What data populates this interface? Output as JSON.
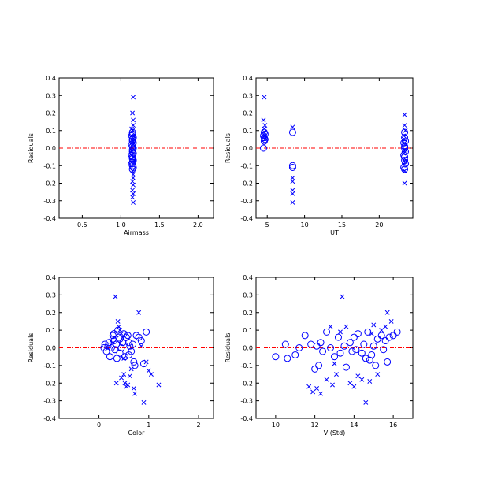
{
  "colors": {
    "marker": "#0000ff",
    "zero_line": "#ff0000",
    "axes": "#000000"
  },
  "chart_data": [
    {
      "type": "scatter",
      "xlabel": "Airmass",
      "ylabel": "Residuals",
      "xlim": [
        0.2,
        2.2
      ],
      "ylim": [
        -0.4,
        0.4
      ],
      "xticks": [
        "0.5",
        "1.0",
        "1.5",
        "2.0"
      ],
      "xtick_values": [
        0.5,
        1.0,
        1.5,
        2.0
      ],
      "yticks": [
        "-0.4",
        "-0.3",
        "-0.2",
        "-0.1",
        "0.0",
        "0.1",
        "0.2",
        "0.3",
        "0.4"
      ],
      "ytick_values": [
        -0.4,
        -0.3,
        -0.2,
        -0.1,
        0.0,
        0.1,
        0.2,
        0.3,
        0.4
      ],
      "zero_line": 0.0,
      "series": [
        {
          "marker": "circle",
          "points": [
            [
              1.15,
              0.09
            ],
            [
              1.15,
              0.08
            ],
            [
              1.14,
              0.07
            ],
            [
              1.16,
              0.06
            ],
            [
              1.15,
              0.05
            ],
            [
              1.15,
              0.04
            ],
            [
              1.16,
              0.03
            ],
            [
              1.14,
              0.02
            ],
            [
              1.15,
              0.01
            ],
            [
              1.16,
              0.0
            ],
            [
              1.15,
              -0.01
            ],
            [
              1.15,
              -0.02
            ],
            [
              1.16,
              -0.03
            ],
            [
              1.14,
              -0.04
            ],
            [
              1.15,
              -0.05
            ],
            [
              1.15,
              -0.06
            ],
            [
              1.16,
              -0.07
            ],
            [
              1.15,
              -0.08
            ],
            [
              1.14,
              -0.09
            ],
            [
              1.15,
              -0.1
            ],
            [
              1.16,
              -0.11
            ],
            [
              1.15,
              -0.12
            ]
          ]
        },
        {
          "marker": "x",
          "points": [
            [
              1.16,
              0.29
            ],
            [
              1.15,
              0.2
            ],
            [
              1.16,
              0.16
            ],
            [
              1.16,
              0.13
            ],
            [
              1.14,
              0.11
            ],
            [
              1.15,
              0.1
            ],
            [
              1.17,
              0.07
            ],
            [
              1.16,
              0.04
            ],
            [
              1.16,
              0.02
            ],
            [
              1.14,
              -0.02
            ],
            [
              1.16,
              -0.05
            ],
            [
              1.17,
              -0.07
            ],
            [
              1.15,
              -0.13
            ],
            [
              1.16,
              -0.15
            ],
            [
              1.16,
              -0.17
            ],
            [
              1.15,
              -0.19
            ],
            [
              1.16,
              -0.21
            ],
            [
              1.15,
              -0.24
            ],
            [
              1.16,
              -0.26
            ],
            [
              1.15,
              -0.28
            ],
            [
              1.16,
              -0.31
            ]
          ]
        }
      ]
    },
    {
      "type": "scatter",
      "xlabel": "UT",
      "ylabel": "Residuals",
      "xlim": [
        3.5,
        24.5
      ],
      "ylim": [
        -0.4,
        0.4
      ],
      "xticks": [
        "5",
        "10",
        "15",
        "20"
      ],
      "xtick_values": [
        5,
        10,
        15,
        20
      ],
      "yticks": [
        "-0.4",
        "-0.3",
        "-0.2",
        "-0.1",
        "0.0",
        "0.1",
        "0.2",
        "0.3",
        "0.4"
      ],
      "ytick_values": [
        -0.4,
        -0.3,
        -0.2,
        -0.1,
        0.0,
        0.1,
        0.2,
        0.3,
        0.4
      ],
      "zero_line": 0.0,
      "series": [
        {
          "marker": "circle",
          "points": [
            [
              4.6,
              0.09
            ],
            [
              4.7,
              0.08
            ],
            [
              4.5,
              0.07
            ],
            [
              4.6,
              0.06
            ],
            [
              4.7,
              0.05
            ],
            [
              4.6,
              0.04
            ],
            [
              4.5,
              0.0
            ],
            [
              8.4,
              0.09
            ],
            [
              8.4,
              -0.1
            ],
            [
              8.4,
              -0.11
            ],
            [
              23.4,
              0.09
            ],
            [
              23.4,
              0.06
            ],
            [
              23.5,
              0.04
            ],
            [
              23.3,
              0.03
            ],
            [
              23.4,
              0.01
            ],
            [
              23.4,
              0.0
            ],
            [
              23.5,
              -0.02
            ],
            [
              23.3,
              -0.04
            ],
            [
              23.4,
              -0.05
            ],
            [
              23.4,
              -0.07
            ],
            [
              23.5,
              -0.09
            ],
            [
              23.3,
              -0.11
            ],
            [
              23.4,
              -0.12
            ]
          ]
        },
        {
          "marker": "x",
          "points": [
            [
              4.6,
              0.29
            ],
            [
              4.5,
              0.16
            ],
            [
              4.7,
              0.13
            ],
            [
              4.6,
              0.11
            ],
            [
              4.5,
              0.08
            ],
            [
              4.7,
              0.05
            ],
            [
              8.4,
              0.12
            ],
            [
              8.4,
              -0.17
            ],
            [
              8.4,
              -0.19
            ],
            [
              8.4,
              -0.24
            ],
            [
              8.4,
              -0.26
            ],
            [
              8.4,
              -0.31
            ],
            [
              23.4,
              0.19
            ],
            [
              23.4,
              0.13
            ],
            [
              23.5,
              0.1
            ],
            [
              23.3,
              0.07
            ],
            [
              23.4,
              0.03
            ],
            [
              23.5,
              -0.01
            ],
            [
              23.3,
              -0.03
            ],
            [
              23.4,
              -0.06
            ],
            [
              23.5,
              -0.08
            ],
            [
              23.4,
              -0.13
            ],
            [
              23.4,
              -0.2
            ]
          ]
        }
      ]
    },
    {
      "type": "scatter",
      "xlabel": "Color",
      "ylabel": "Residuals",
      "xlim": [
        -0.8,
        2.3
      ],
      "ylim": [
        -0.4,
        0.4
      ],
      "xticks": [
        "0",
        "1",
        "2"
      ],
      "xtick_values": [
        0,
        1,
        2
      ],
      "yticks": [
        "-0.4",
        "-0.3",
        "-0.2",
        "-0.1",
        "0.0",
        "0.1",
        "0.2",
        "0.3",
        "0.4"
      ],
      "ytick_values": [
        -0.4,
        -0.3,
        -0.2,
        -0.1,
        0.0,
        0.1,
        0.2,
        0.3,
        0.4
      ],
      "zero_line": 0.0,
      "series": [
        {
          "marker": "circle",
          "points": [
            [
              0.1,
              0.0
            ],
            [
              0.12,
              0.02
            ],
            [
              0.15,
              -0.02
            ],
            [
              0.18,
              0.01
            ],
            [
              0.2,
              0.03
            ],
            [
              0.25,
              0.0
            ],
            [
              0.28,
              0.05
            ],
            [
              0.3,
              0.08
            ],
            [
              0.32,
              -0.01
            ],
            [
              0.35,
              0.02
            ],
            [
              0.38,
              0.1
            ],
            [
              0.4,
              0.06
            ],
            [
              0.42,
              -0.03
            ],
            [
              0.45,
              0.0
            ],
            [
              0.48,
              0.03
            ],
            [
              0.5,
              0.08
            ],
            [
              0.52,
              -0.05
            ],
            [
              0.55,
              0.06
            ],
            [
              0.58,
              0.07
            ],
            [
              0.6,
              -0.04
            ],
            [
              0.62,
              0.01
            ],
            [
              0.65,
              -0.02
            ],
            [
              0.68,
              0.02
            ],
            [
              0.7,
              -0.08
            ],
            [
              0.72,
              -0.1
            ],
            [
              0.75,
              0.07
            ],
            [
              0.8,
              0.06
            ],
            [
              0.85,
              0.04
            ],
            [
              0.9,
              -0.09
            ],
            [
              0.95,
              0.09
            ],
            [
              0.3,
              0.04
            ],
            [
              0.22,
              -0.05
            ],
            [
              0.42,
              0.05
            ],
            [
              0.36,
              -0.06
            ],
            [
              0.6,
              0.03
            ],
            [
              0.28,
              0.07
            ]
          ]
        },
        {
          "marker": "x",
          "points": [
            [
              0.33,
              0.29
            ],
            [
              0.38,
              0.15
            ],
            [
              0.4,
              0.12
            ],
            [
              0.42,
              0.1
            ],
            [
              0.45,
              0.08
            ],
            [
              0.5,
              -0.15
            ],
            [
              0.52,
              -0.2
            ],
            [
              0.55,
              -0.22
            ],
            [
              0.58,
              -0.21
            ],
            [
              0.62,
              -0.16
            ],
            [
              0.7,
              -0.23
            ],
            [
              0.72,
              -0.26
            ],
            [
              0.8,
              0.2
            ],
            [
              0.85,
              0.01
            ],
            [
              0.9,
              -0.31
            ],
            [
              0.95,
              -0.08
            ],
            [
              1.0,
              -0.13
            ],
            [
              1.05,
              -0.15
            ],
            [
              1.2,
              -0.21
            ],
            [
              0.35,
              -0.2
            ],
            [
              0.5,
              -0.06
            ],
            [
              0.45,
              -0.17
            ],
            [
              0.65,
              -0.12
            ]
          ]
        }
      ]
    },
    {
      "type": "scatter",
      "xlabel": "V (Std)",
      "ylabel": "Residuals",
      "xlim": [
        9.0,
        17.0
      ],
      "ylim": [
        -0.4,
        0.4
      ],
      "xticks": [
        "10",
        "12",
        "14",
        "16"
      ],
      "xtick_values": [
        10,
        12,
        14,
        16
      ],
      "yticks": [
        "-0.4",
        "-0.3",
        "-0.2",
        "-0.1",
        "0.0",
        "0.1",
        "0.2",
        "0.3",
        "0.4"
      ],
      "ytick_values": [
        -0.4,
        -0.3,
        -0.2,
        -0.1,
        0.0,
        0.1,
        0.2,
        0.3,
        0.4
      ],
      "zero_line": 0.0,
      "series": [
        {
          "marker": "circle",
          "points": [
            [
              10.0,
              -0.05
            ],
            [
              10.5,
              0.02
            ],
            [
              10.6,
              -0.06
            ],
            [
              11.0,
              -0.04
            ],
            [
              11.5,
              0.07
            ],
            [
              11.8,
              0.02
            ],
            [
              12.0,
              -0.12
            ],
            [
              12.1,
              0.01
            ],
            [
              12.3,
              0.03
            ],
            [
              12.4,
              -0.02
            ],
            [
              12.6,
              0.09
            ],
            [
              12.8,
              0.0
            ],
            [
              13.0,
              -0.05
            ],
            [
              13.2,
              0.06
            ],
            [
              13.3,
              -0.03
            ],
            [
              13.5,
              0.01
            ],
            [
              13.6,
              -0.11
            ],
            [
              13.8,
              0.03
            ],
            [
              14.0,
              0.06
            ],
            [
              14.1,
              -0.01
            ],
            [
              14.2,
              0.08
            ],
            [
              14.4,
              -0.03
            ],
            [
              14.5,
              0.02
            ],
            [
              14.6,
              -0.06
            ],
            [
              14.7,
              0.09
            ],
            [
              14.9,
              -0.04
            ],
            [
              15.0,
              0.01
            ],
            [
              15.1,
              -0.1
            ],
            [
              15.2,
              0.05
            ],
            [
              15.4,
              0.07
            ],
            [
              15.5,
              -0.01
            ],
            [
              15.6,
              0.04
            ],
            [
              15.7,
              -0.08
            ],
            [
              15.8,
              0.06
            ],
            [
              16.0,
              0.07
            ],
            [
              16.2,
              0.09
            ],
            [
              12.2,
              -0.1
            ],
            [
              13.9,
              -0.02
            ],
            [
              14.8,
              -0.07
            ],
            [
              11.2,
              0.0
            ]
          ]
        },
        {
          "marker": "x",
          "points": [
            [
              11.7,
              -0.22
            ],
            [
              11.9,
              -0.25
            ],
            [
              12.1,
              -0.23
            ],
            [
              12.3,
              -0.26
            ],
            [
              12.6,
              -0.18
            ],
            [
              12.9,
              -0.21
            ],
            [
              13.1,
              -0.15
            ],
            [
              13.4,
              0.29
            ],
            [
              13.6,
              0.12
            ],
            [
              13.8,
              -0.2
            ],
            [
              14.0,
              -0.22
            ],
            [
              14.2,
              -0.16
            ],
            [
              14.4,
              -0.18
            ],
            [
              14.6,
              -0.31
            ],
            [
              14.8,
              -0.19
            ],
            [
              15.0,
              0.13
            ],
            [
              15.2,
              -0.15
            ],
            [
              15.4,
              0.1
            ],
            [
              15.6,
              0.12
            ],
            [
              15.7,
              0.2
            ],
            [
              15.9,
              0.15
            ],
            [
              12.8,
              0.12
            ],
            [
              13.3,
              0.09
            ],
            [
              14.9,
              0.08
            ],
            [
              13.0,
              -0.09
            ]
          ]
        }
      ]
    }
  ]
}
